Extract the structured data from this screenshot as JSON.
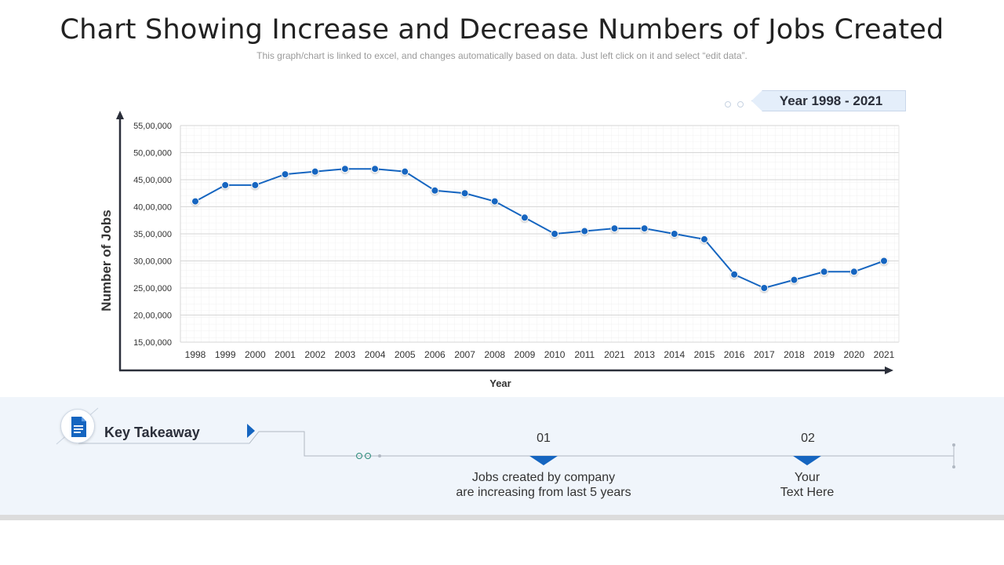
{
  "header": {
    "title": "Chart Showing Increase and Decrease Numbers of Jobs Created",
    "subtitle": "This graph/chart is linked to excel, and changes automatically based on data. Just left click on it and select “edit data”."
  },
  "year_badge": {
    "label": "Year 1998 - 2021"
  },
  "chart_data": {
    "type": "line",
    "title": "Chart Showing Increase and Decrease Numbers of Jobs Created",
    "xlabel": "Year",
    "ylabel": "Number of Jobs",
    "categories": [
      "1998",
      "1999",
      "2000",
      "2001",
      "2002",
      "2003",
      "2004",
      "2005",
      "2006",
      "2007",
      "2008",
      "2009",
      "2010",
      "2011",
      "2021",
      "2013",
      "2014",
      "2015",
      "2016",
      "2017",
      "2018",
      "2019",
      "2020",
      "2021"
    ],
    "series": [
      {
        "name": "Jobs Created",
        "color": "#1565c0",
        "values": [
          4100000,
          4400000,
          4400000,
          4600000,
          4650000,
          4700000,
          4700000,
          4650000,
          4300000,
          4250000,
          4100000,
          3800000,
          3500000,
          3550000,
          3600000,
          3600000,
          3500000,
          3400000,
          2750000,
          2500000,
          2650000,
          2800000,
          2800000,
          3000000
        ]
      }
    ],
    "ylim": [
      1500000,
      5500000
    ],
    "yticks": [
      1500000,
      2000000,
      2500000,
      3000000,
      3500000,
      4000000,
      4500000,
      5000000,
      5500000
    ],
    "ytick_labels": [
      "15,00,000",
      "20,00,000",
      "25,00,000",
      "30,00,000",
      "35,00,000",
      "40,00,000",
      "45,00,000",
      "50,00,000",
      "55,00,000"
    ],
    "grid": true,
    "legend": "none"
  },
  "takeaway": {
    "label": "Key Takeaway",
    "items": [
      {
        "number": "01",
        "line1": "Jobs created by company",
        "line2": "are increasing from last 5 years"
      },
      {
        "number": "02",
        "line1": "Your",
        "line2": "Text Here"
      }
    ]
  },
  "colors": {
    "accent": "#1565c0",
    "band": "#f0f5fb",
    "badge": "#e4eefa"
  }
}
